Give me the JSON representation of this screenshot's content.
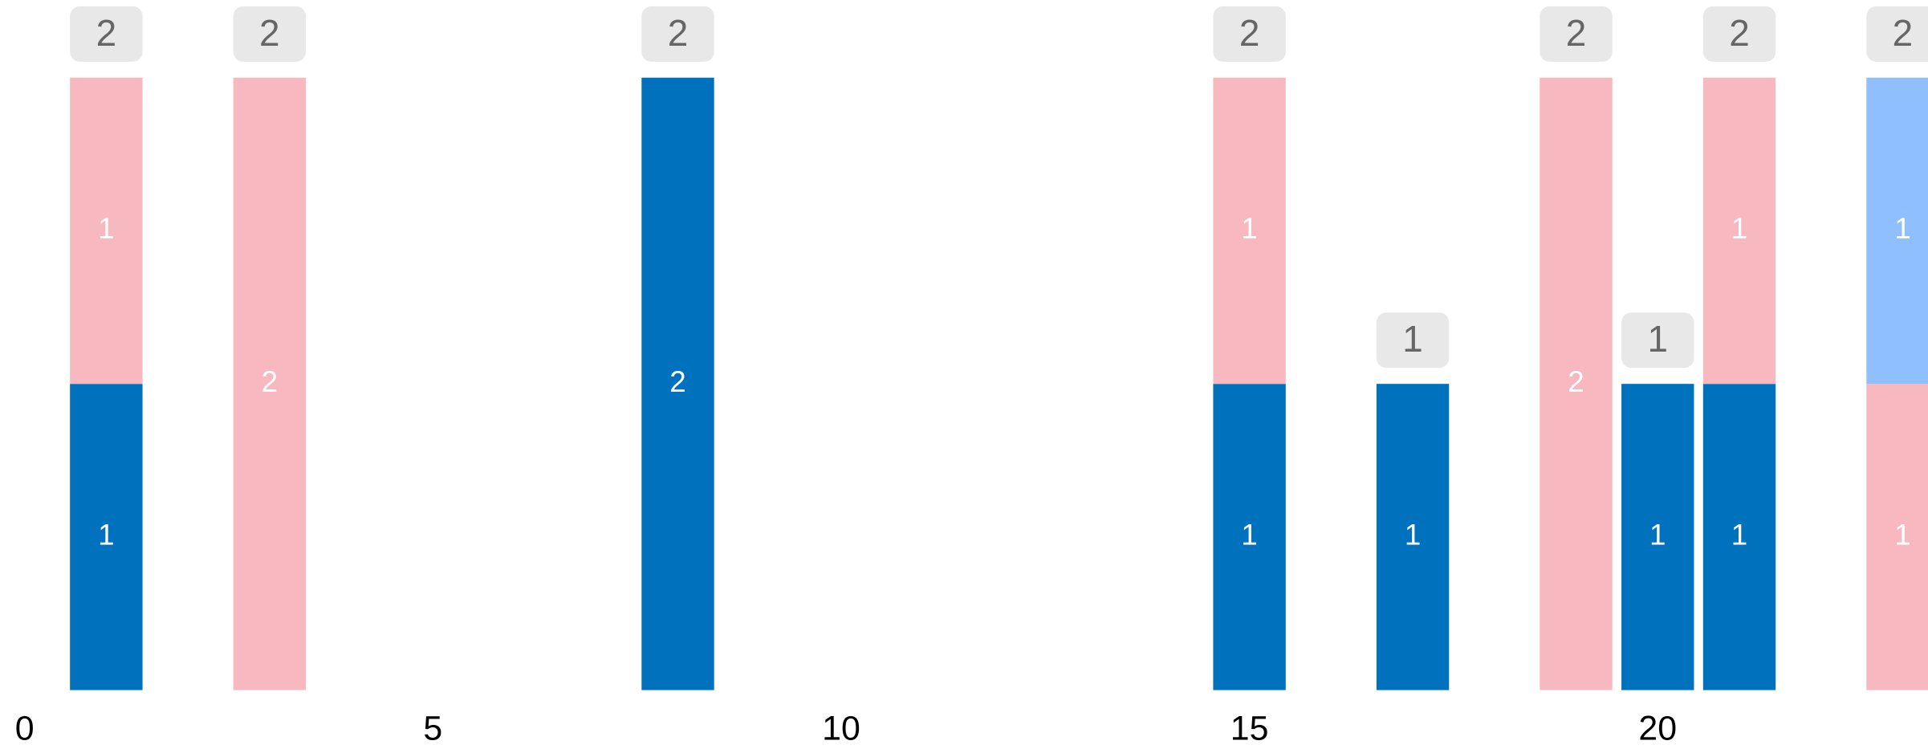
{
  "chart_data": {
    "type": "bar",
    "stacked": true,
    "x": [
      1,
      3,
      8,
      15,
      17,
      19,
      20,
      21,
      23
    ],
    "series": [
      {
        "color": "#0072bd",
        "values": [
          1,
          null,
          2,
          1,
          1,
          null,
          1,
          1,
          null
        ]
      },
      {
        "color": "#f8b8c0",
        "values": [
          1,
          2,
          null,
          1,
          null,
          2,
          null,
          1,
          1
        ]
      },
      {
        "color": "#8fbfff",
        "values": [
          null,
          null,
          null,
          null,
          null,
          null,
          null,
          null,
          1
        ]
      }
    ],
    "totals": [
      2,
      2,
      2,
      2,
      1,
      2,
      1,
      2,
      2
    ],
    "xlim": [
      0,
      23.31
    ],
    "xticks": [
      0,
      5,
      10,
      15,
      20
    ],
    "ylim": [
      0,
      2
    ]
  }
}
